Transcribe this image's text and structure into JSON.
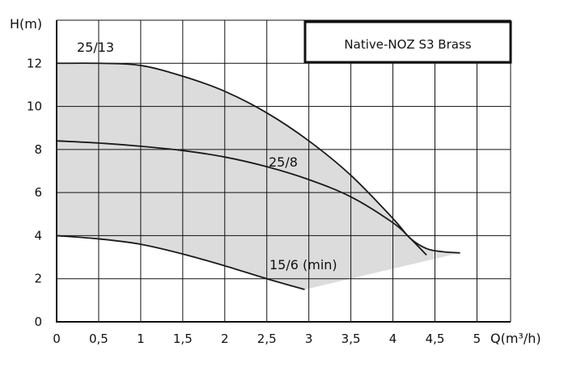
{
  "chart_data": {
    "type": "line",
    "title": "Native-NOZ S3 Brass",
    "xlabel": "Q(m³/h)",
    "ylabel": "H(m)",
    "xlim": [
      0,
      5.4
    ],
    "ylim": [
      0,
      14
    ],
    "grid": true,
    "x_ticks": [
      0,
      0.5,
      1,
      1.5,
      2,
      2.5,
      3,
      3.5,
      4,
      4.5,
      5
    ],
    "x_tick_labels": [
      "0",
      "0,5",
      "1",
      "1,5",
      "2",
      "2,5",
      "3",
      "3,5",
      "4",
      "4,5",
      "5"
    ],
    "y_ticks": [
      0,
      2,
      4,
      6,
      8,
      10,
      12
    ],
    "y_tick_labels": [
      "0",
      "2",
      "4",
      "6",
      "8",
      "10",
      "12"
    ],
    "series": [
      {
        "name": "25/13",
        "x": [
          0,
          0.5,
          1,
          1.5,
          2,
          2.5,
          3,
          3.5,
          4,
          4.2,
          4.4,
          4.6,
          4.8
        ],
        "y": [
          12,
          12,
          11.9,
          11.4,
          10.7,
          9.7,
          8.4,
          6.8,
          4.8,
          3.9,
          3.4,
          3.25,
          3.2
        ]
      },
      {
        "name": "25/8",
        "x": [
          0,
          0.5,
          1,
          1.5,
          2,
          2.5,
          3,
          3.5,
          4,
          4.2,
          4.4
        ],
        "y": [
          8.4,
          8.3,
          8.15,
          7.95,
          7.65,
          7.2,
          6.6,
          5.8,
          4.6,
          3.9,
          3.1
        ]
      },
      {
        "name": "15/6 (min)",
        "x": [
          0,
          0.5,
          1,
          1.5,
          2,
          2.5,
          2.95
        ],
        "y": [
          4,
          3.85,
          3.6,
          3.15,
          2.6,
          2.0,
          1.5
        ]
      }
    ],
    "fill_color": "#dcdcdc",
    "line_color": "#1a1a1a"
  }
}
